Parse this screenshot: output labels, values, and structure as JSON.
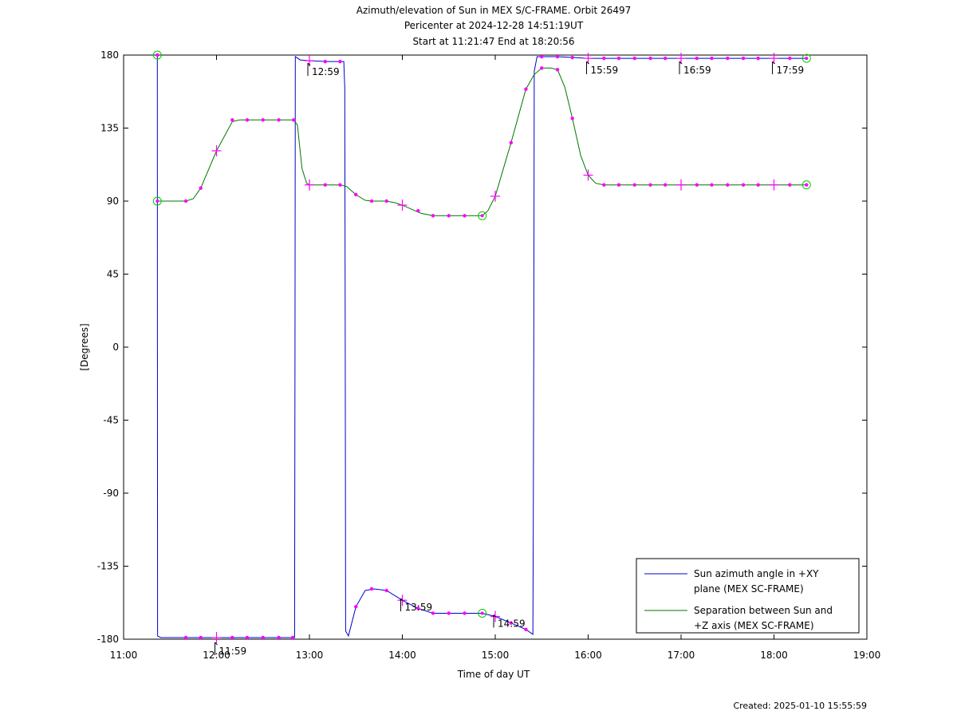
{
  "chart_data": {
    "type": "line",
    "title": [
      "Azimuth/elevation of Sun in MEX S/C-FRAME.  Orbit 26497",
      "Pericenter at 2024-12-28 14:51:19UT",
      "Start at 11:21:47 End at 18:20:56"
    ],
    "xlabel": "Time of day UT",
    "ylabel": "[Degrees]",
    "xlim": [
      "11:00",
      "19:00"
    ],
    "xlim_hours": [
      11,
      19
    ],
    "ylim": [
      -180,
      180
    ],
    "x_ticks": [
      "11:00",
      "12:00",
      "13:00",
      "14:00",
      "15:00",
      "16:00",
      "17:00",
      "18:00",
      "19:00"
    ],
    "y_ticks": [
      180,
      135,
      90,
      45,
      0,
      -45,
      -90,
      -135,
      -180
    ],
    "grid": false,
    "legend_position": "bottom-right",
    "legend": [
      {
        "label_lines": [
          "Sun azimuth angle in +XY",
          "plane (MEX SC-FRAME)"
        ],
        "color": "#0000cc"
      },
      {
        "label_lines": [
          "Separation between Sun and",
          "+Z axis (MEX SC-FRAME)"
        ],
        "color": "#007700"
      }
    ],
    "marker_color": "#ff00ff",
    "circle_marker_color": "#00cc00",
    "time_annotations": [
      {
        "text": "11:59",
        "x": 11.983,
        "y": -180
      },
      {
        "text": "12:59",
        "x": 12.983,
        "y": 177
      },
      {
        "text": "13:59",
        "x": 13.983,
        "y": -153
      },
      {
        "text": "14:59",
        "x": 14.983,
        "y": -163
      },
      {
        "text": "15:59",
        "x": 15.983,
        "y": 178
      },
      {
        "text": "16:59",
        "x": 16.983,
        "y": 178
      },
      {
        "text": "17:59",
        "x": 17.983,
        "y": 178
      }
    ],
    "series": [
      {
        "name": "Sun azimuth angle in +XY plane (MEX SC-FRAME)",
        "color": "#0000cc",
        "points": [
          [
            11.363,
            180
          ],
          [
            11.364,
            10
          ],
          [
            11.366,
            -178
          ],
          [
            11.4,
            -179
          ],
          [
            12.82,
            -179
          ],
          [
            12.84,
            -179
          ],
          [
            12.845,
            0
          ],
          [
            12.848,
            179
          ],
          [
            12.9,
            177
          ],
          [
            13.0,
            176.5
          ],
          [
            13.2,
            176
          ],
          [
            13.37,
            176
          ],
          [
            13.38,
            160
          ],
          [
            13.385,
            0
          ],
          [
            13.39,
            -175
          ],
          [
            13.42,
            -178
          ],
          [
            13.5,
            -160
          ],
          [
            13.6,
            -150
          ],
          [
            13.7,
            -149
          ],
          [
            13.83,
            -150
          ],
          [
            14.0,
            -156
          ],
          [
            14.17,
            -161
          ],
          [
            14.33,
            -164
          ],
          [
            14.5,
            -164
          ],
          [
            14.67,
            -164
          ],
          [
            14.86,
            -164
          ],
          [
            15.0,
            -166
          ],
          [
            15.17,
            -170
          ],
          [
            15.33,
            -174
          ],
          [
            15.405,
            -177
          ],
          [
            15.41,
            -90
          ],
          [
            15.415,
            0
          ],
          [
            15.42,
            170
          ],
          [
            15.45,
            179
          ],
          [
            15.5,
            179
          ],
          [
            15.67,
            179
          ],
          [
            15.83,
            178.5
          ],
          [
            16.0,
            178
          ],
          [
            16.17,
            178
          ],
          [
            16.33,
            178
          ],
          [
            16.5,
            178
          ],
          [
            16.67,
            178
          ],
          [
            16.83,
            178
          ],
          [
            17.0,
            178
          ],
          [
            17.17,
            178
          ],
          [
            17.33,
            178
          ],
          [
            17.5,
            178
          ],
          [
            17.67,
            178
          ],
          [
            17.83,
            178
          ],
          [
            18.0,
            178
          ],
          [
            18.17,
            178
          ],
          [
            18.35,
            178
          ]
        ],
        "markers": [
          [
            11.363,
            180
          ],
          [
            11.67,
            -179
          ],
          [
            11.83,
            -179
          ],
          [
            12.0,
            -179
          ],
          [
            12.17,
            -179
          ],
          [
            12.33,
            -179
          ],
          [
            12.5,
            -179
          ],
          [
            12.67,
            -179
          ],
          [
            12.82,
            -179
          ],
          [
            13.0,
            176.5
          ],
          [
            13.17,
            176
          ],
          [
            13.33,
            176
          ],
          [
            13.5,
            -160
          ],
          [
            13.67,
            -149
          ],
          [
            13.83,
            -150
          ],
          [
            14.0,
            -156
          ],
          [
            14.17,
            -161
          ],
          [
            14.33,
            -164
          ],
          [
            14.5,
            -164
          ],
          [
            14.67,
            -164
          ],
          [
            15.0,
            -166
          ],
          [
            15.17,
            -170
          ],
          [
            15.33,
            -174
          ],
          [
            15.5,
            179
          ],
          [
            15.67,
            179
          ],
          [
            15.83,
            178.5
          ],
          [
            16.0,
            178
          ],
          [
            16.17,
            178
          ],
          [
            16.33,
            178
          ],
          [
            16.5,
            178
          ],
          [
            16.67,
            178
          ],
          [
            16.83,
            178
          ],
          [
            17.0,
            178
          ],
          [
            17.17,
            178
          ],
          [
            17.33,
            178
          ],
          [
            17.5,
            178
          ],
          [
            17.67,
            178
          ],
          [
            17.83,
            178
          ],
          [
            18.0,
            178
          ],
          [
            18.17,
            178
          ]
        ],
        "circles": [
          [
            11.363,
            180
          ],
          [
            14.86,
            -164
          ],
          [
            18.35,
            178
          ]
        ]
      },
      {
        "name": "Separation between Sun and +Z axis (MEX SC-FRAME)",
        "color": "#007700",
        "points": [
          [
            11.363,
            90
          ],
          [
            11.5,
            90
          ],
          [
            11.67,
            90
          ],
          [
            11.75,
            91.5
          ],
          [
            11.83,
            98
          ],
          [
            12.0,
            121
          ],
          [
            12.17,
            139
          ],
          [
            12.25,
            140
          ],
          [
            12.33,
            140
          ],
          [
            12.5,
            140
          ],
          [
            12.67,
            140
          ],
          [
            12.83,
            140
          ],
          [
            12.87,
            137
          ],
          [
            12.92,
            110
          ],
          [
            12.97,
            101
          ],
          [
            13.0,
            100
          ],
          [
            13.17,
            100
          ],
          [
            13.33,
            100
          ],
          [
            13.4,
            99
          ],
          [
            13.5,
            94
          ],
          [
            13.6,
            90.5
          ],
          [
            13.67,
            90
          ],
          [
            13.83,
            90
          ],
          [
            13.92,
            89
          ],
          [
            14.0,
            87.5
          ],
          [
            14.1,
            85
          ],
          [
            14.2,
            82.5
          ],
          [
            14.33,
            81
          ],
          [
            14.5,
            81
          ],
          [
            14.67,
            81
          ],
          [
            14.86,
            81
          ],
          [
            14.92,
            84
          ],
          [
            15.0,
            93
          ],
          [
            15.17,
            126
          ],
          [
            15.33,
            159
          ],
          [
            15.42,
            168
          ],
          [
            15.5,
            172
          ],
          [
            15.6,
            172
          ],
          [
            15.67,
            171
          ],
          [
            15.75,
            160
          ],
          [
            15.83,
            141
          ],
          [
            15.92,
            118
          ],
          [
            16.0,
            106
          ],
          [
            16.08,
            101
          ],
          [
            16.17,
            100
          ],
          [
            16.33,
            100
          ],
          [
            16.5,
            100
          ],
          [
            16.67,
            100
          ],
          [
            16.83,
            100
          ],
          [
            17.0,
            100
          ],
          [
            17.17,
            100
          ],
          [
            17.33,
            100
          ],
          [
            17.5,
            100
          ],
          [
            17.67,
            100
          ],
          [
            17.83,
            100
          ],
          [
            18.0,
            100
          ],
          [
            18.17,
            100
          ],
          [
            18.35,
            100
          ]
        ],
        "markers": [
          [
            11.67,
            90
          ],
          [
            11.83,
            98
          ],
          [
            12.0,
            121
          ],
          [
            12.17,
            140
          ],
          [
            12.33,
            140
          ],
          [
            12.5,
            140
          ],
          [
            12.67,
            140
          ],
          [
            12.83,
            140
          ],
          [
            13.0,
            100
          ],
          [
            13.17,
            100
          ],
          [
            13.33,
            100
          ],
          [
            13.5,
            94
          ],
          [
            13.67,
            90
          ],
          [
            13.83,
            90
          ],
          [
            14.0,
            87.5
          ],
          [
            14.17,
            84
          ],
          [
            14.33,
            81
          ],
          [
            14.5,
            81
          ],
          [
            14.67,
            81
          ],
          [
            15.0,
            93
          ],
          [
            15.17,
            126
          ],
          [
            15.33,
            159
          ],
          [
            15.5,
            172
          ],
          [
            15.67,
            171
          ],
          [
            15.83,
            141
          ],
          [
            16.0,
            106
          ],
          [
            16.17,
            100
          ],
          [
            16.33,
            100
          ],
          [
            16.5,
            100
          ],
          [
            16.67,
            100
          ],
          [
            16.83,
            100
          ],
          [
            17.0,
            100
          ],
          [
            17.17,
            100
          ],
          [
            17.33,
            100
          ],
          [
            17.5,
            100
          ],
          [
            17.67,
            100
          ],
          [
            17.83,
            100
          ],
          [
            18.0,
            100
          ],
          [
            18.17,
            100
          ],
          [
            18.35,
            100
          ]
        ],
        "circles": [
          [
            11.363,
            90
          ],
          [
            14.86,
            81
          ],
          [
            18.35,
            100
          ]
        ]
      }
    ]
  },
  "footer": {
    "created": "Created: 2025-01-10 15:55:59"
  }
}
